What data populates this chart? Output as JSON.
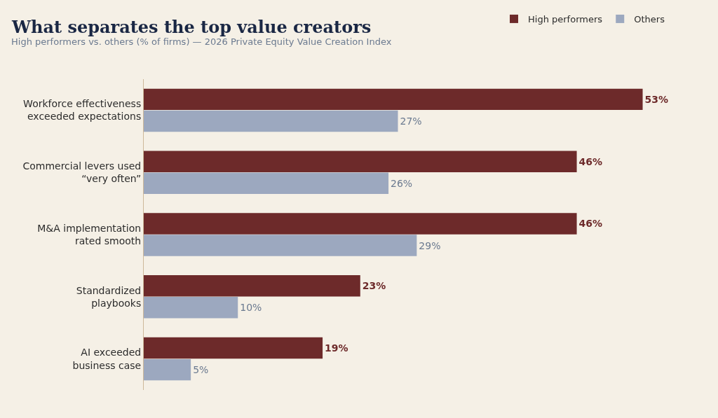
{
  "chart_data": {
    "type": "bar",
    "orientation": "horizontal",
    "title": "What separates the top value creators",
    "subtitle": "High performers vs. others (% of firms) — 2026 Private Equity Value Creation Index",
    "categories": [
      "Workforce effectiveness exceeded expectations",
      "Commercial levers used “very often”",
      "M&A implementation rated smooth",
      "Standardized playbooks",
      "AI exceeded business case"
    ],
    "series": [
      {
        "name": "High performers",
        "color": "#6d2a2a",
        "values": [
          53,
          46,
          46,
          23,
          19
        ],
        "value_labels": [
          "53%",
          "46%",
          "46%",
          "23%",
          "19%"
        ]
      },
      {
        "name": "Others",
        "color": "#9ca8bf",
        "values": [
          27,
          26,
          29,
          10,
          5
        ],
        "value_labels": [
          "27%",
          "26%",
          "29%",
          "10%",
          "5%"
        ]
      }
    ],
    "legend": "top right",
    "grid": false,
    "tick_labels": "y"
  }
}
